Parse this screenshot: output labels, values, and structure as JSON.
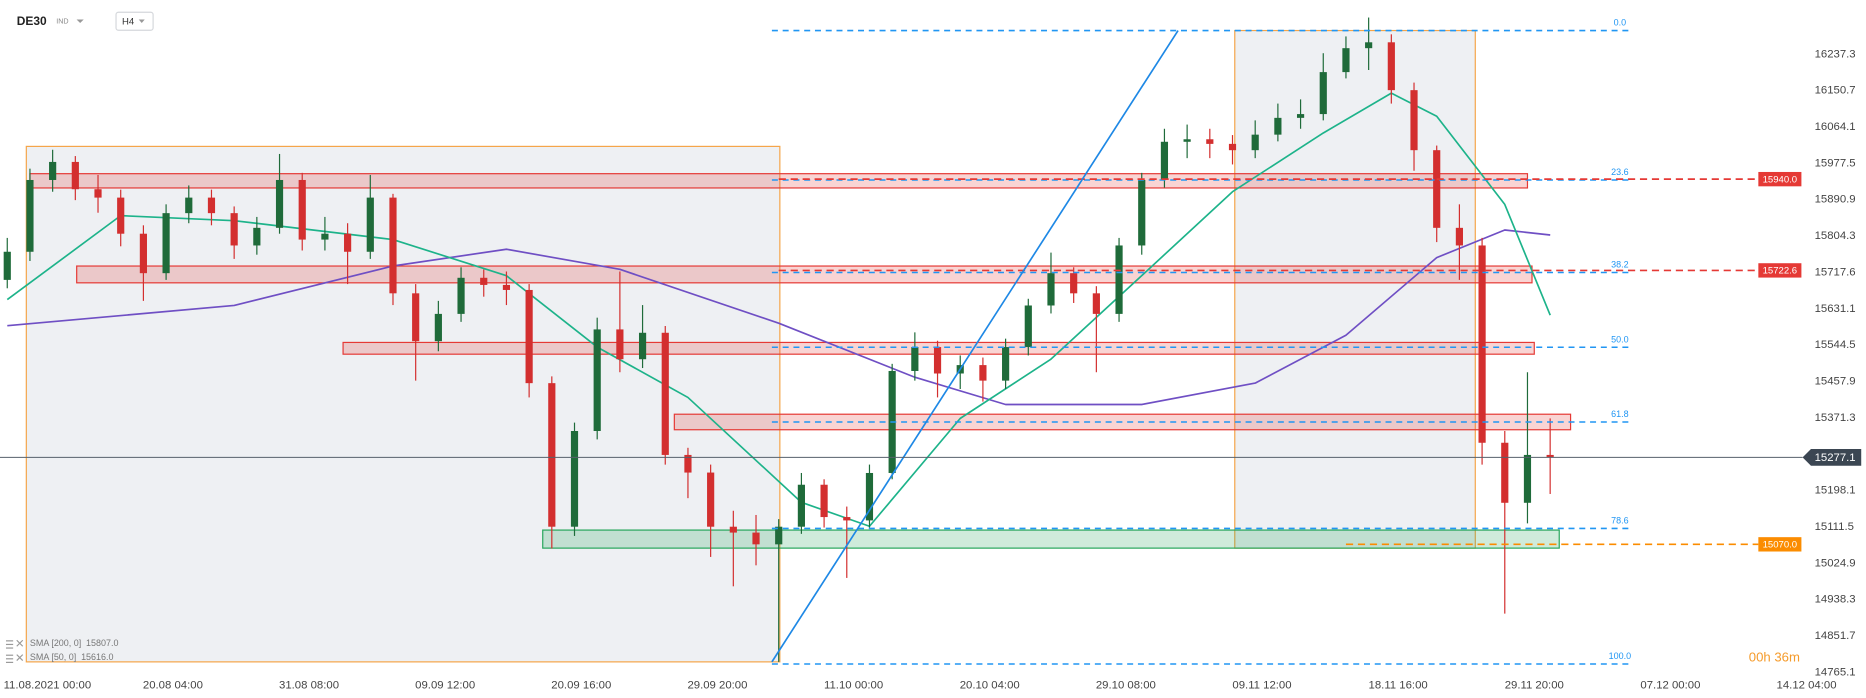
{
  "header": {
    "symbol": "DE30",
    "market": "IND",
    "timeframe": "H4"
  },
  "chart_data": {
    "type": "candlestick",
    "up_color": "#1f6b3a",
    "down_color": "#d32f2f",
    "xlim": [
      -0.32,
      81.92
    ],
    "ylim": [
      14756,
      16366
    ],
    "xticks": [
      {
        "value": 1.3,
        "label": "11.08.2021  00:00"
      },
      {
        "value": 7.3,
        "label": "20.08  04:00"
      },
      {
        "value": 13.3,
        "label": "31.08  08:00"
      },
      {
        "value": 19.3,
        "label": "09.09  12:00"
      },
      {
        "value": 25.3,
        "label": "20.09  16:00"
      },
      {
        "value": 31.3,
        "label": "29.09  20:00"
      },
      {
        "value": 37.3,
        "label": "11.10  00:00"
      },
      {
        "value": 43.3,
        "label": "20.10  04:00"
      },
      {
        "value": 49.3,
        "label": "29.10  08:00"
      },
      {
        "value": 55.3,
        "label": "09.11  12:00"
      },
      {
        "value": 61.3,
        "label": "18.11  16:00"
      },
      {
        "value": 67.3,
        "label": "29.11  20:00"
      },
      {
        "value": 73.3,
        "label": "07.12  00:00"
      },
      {
        "value": 79.3,
        "label": "14.12  04:00"
      }
    ],
    "yticks": [
      16237.3,
      16150.7,
      16064.1,
      15977.5,
      15890.9,
      15804.3,
      15717.6,
      15631.1,
      15544.5,
      15457.9,
      15371.3,
      15198.1,
      15111.5,
      15024.9,
      14938.3,
      14851.7,
      14765.1
    ],
    "ohlc": [
      [
        15700,
        15800,
        15680,
        15767
      ],
      [
        15767,
        15965,
        15745,
        15938
      ],
      [
        15938,
        16010,
        15910,
        15981
      ],
      [
        15981,
        15995,
        15890,
        15916
      ],
      [
        15916,
        15950,
        15860,
        15896
      ],
      [
        15896,
        15915,
        15780,
        15810
      ],
      [
        15810,
        15830,
        15650,
        15716
      ],
      [
        15716,
        15880,
        15700,
        15859
      ],
      [
        15859,
        15925,
        15835,
        15896
      ],
      [
        15896,
        15915,
        15830,
        15859
      ],
      [
        15859,
        15875,
        15750,
        15782
      ],
      [
        15782,
        15850,
        15760,
        15824
      ],
      [
        15824,
        16000,
        15810,
        15938
      ],
      [
        15938,
        15955,
        15770,
        15796
      ],
      [
        15796,
        15850,
        15770,
        15810
      ],
      [
        15810,
        15835,
        15690,
        15767
      ],
      [
        15767,
        15950,
        15750,
        15896
      ],
      [
        15896,
        15905,
        15640,
        15668
      ],
      [
        15668,
        15690,
        15460,
        15554
      ],
      [
        15554,
        15650,
        15530,
        15619
      ],
      [
        15619,
        15730,
        15600,
        15705
      ],
      [
        15705,
        15725,
        15660,
        15688
      ],
      [
        15688,
        15720,
        15640,
        15676
      ],
      [
        15676,
        15690,
        15420,
        15454
      ],
      [
        15454,
        15470,
        15060,
        15112
      ],
      [
        15112,
        15360,
        15090,
        15340
      ],
      [
        15340,
        15610,
        15320,
        15582
      ],
      [
        15582,
        15720,
        15480,
        15511
      ],
      [
        15511,
        15640,
        15490,
        15574
      ],
      [
        15574,
        15590,
        15260,
        15283
      ],
      [
        15283,
        15300,
        15180,
        15241
      ],
      [
        15241,
        15260,
        15040,
        15112
      ],
      [
        15112,
        15150,
        14970,
        15098
      ],
      [
        15098,
        15140,
        15020,
        15070
      ],
      [
        15070,
        15130,
        14790,
        15112
      ],
      [
        15112,
        15240,
        15095,
        15212
      ],
      [
        15212,
        15225,
        15110,
        15135
      ],
      [
        15135,
        15160,
        14990,
        15127
      ],
      [
        15127,
        15260,
        15110,
        15240
      ],
      [
        15240,
        15500,
        15225,
        15483
      ],
      [
        15483,
        15575,
        15460,
        15540
      ],
      [
        15540,
        15555,
        15420,
        15477
      ],
      [
        15477,
        15520,
        15440,
        15497
      ],
      [
        15497,
        15515,
        15410,
        15460
      ],
      [
        15460,
        15560,
        15440,
        15540
      ],
      [
        15540,
        15655,
        15520,
        15639
      ],
      [
        15639,
        15765,
        15620,
        15716
      ],
      [
        15716,
        15730,
        15645,
        15668
      ],
      [
        15668,
        15685,
        15480,
        15619
      ],
      [
        15619,
        15800,
        15600,
        15782
      ],
      [
        15782,
        15955,
        15760,
        15938
      ],
      [
        15938,
        16060,
        15920,
        16029
      ],
      [
        16029,
        16070,
        15990,
        16035
      ],
      [
        16035,
        16060,
        15990,
        16024
      ],
      [
        16024,
        16045,
        15975,
        16009
      ],
      [
        16009,
        16080,
        15990,
        16046
      ],
      [
        16046,
        16120,
        16030,
        16086
      ],
      [
        16086,
        16130,
        16060,
        16095
      ],
      [
        16095,
        16240,
        16080,
        16195
      ],
      [
        16195,
        16280,
        16180,
        16252
      ],
      [
        16252,
        16325,
        16200,
        16266
      ],
      [
        16266,
        16285,
        16120,
        16152
      ],
      [
        16152,
        16170,
        15960,
        16009
      ],
      [
        16009,
        16020,
        15790,
        15824
      ],
      [
        15824,
        15880,
        15700,
        15782
      ],
      [
        15782,
        15800,
        15260,
        15312
      ],
      [
        15312,
        15340,
        14905,
        15169
      ],
      [
        15169,
        15480,
        15120,
        15283
      ],
      [
        15283,
        15370,
        15190,
        15277
      ]
    ],
    "series": [
      {
        "name": "SMA [200, 0]",
        "last_label": "15807.0",
        "color": "#6f4fc4",
        "x": [
          0,
          10,
          17,
          22,
          27,
          34,
          40,
          44,
          50,
          55,
          59,
          63,
          66,
          68
        ],
        "values": [
          15591,
          15639,
          15733,
          15773,
          15725,
          15597,
          15468,
          15403,
          15403,
          15454,
          15568,
          15753,
          15819,
          15807
        ]
      },
      {
        "name": "SMA [50, 0]",
        "last_label": "15616.0",
        "color": "#1db38a",
        "x": [
          0,
          5,
          10,
          17,
          22,
          26,
          30,
          35,
          38,
          42,
          46,
          50,
          54,
          58,
          61,
          63,
          66,
          68
        ],
        "values": [
          15653,
          15853,
          15841,
          15796,
          15710,
          15540,
          15420,
          15170,
          15113,
          15370,
          15511,
          15710,
          15910,
          16050,
          16145,
          16090,
          15880,
          15616
        ]
      }
    ],
    "zones": [
      {
        "top": 15953,
        "bottom": 15919,
        "x0": 1.0,
        "x1": 67.0,
        "color": "#e53935"
      },
      {
        "top": 15733,
        "bottom": 15693,
        "x0": 3.06,
        "x1": 67.2,
        "color": "#e53935"
      },
      {
        "top": 15551,
        "bottom": 15523,
        "x0": 14.8,
        "x1": 67.3,
        "color": "#e53935"
      },
      {
        "top": 15380,
        "bottom": 15343,
        "x0": 29.4,
        "x1": 68.9,
        "color": "#e53935"
      },
      {
        "top": 15104,
        "bottom": 15061,
        "x0": 23.6,
        "x1": 68.4,
        "color": "#26a65b"
      }
    ],
    "time_boxes": [
      {
        "top": 16018,
        "bottom": 14790,
        "x0": 0.84,
        "x1": 34.05
      },
      {
        "top": 16294,
        "bottom": 15061,
        "x0": 54.1,
        "x1": 64.7
      }
    ],
    "trendline": {
      "x": [
        33.7,
        51.6
      ],
      "values": [
        14790,
        16294
      ],
      "color": "#1e88e5"
    },
    "fib": {
      "x0": 33.7,
      "x1": 71.6,
      "high": 16294,
      "low": 14785,
      "color": "#2196f3",
      "levels": [
        {
          "value": 0,
          "label": "0.0"
        },
        23.6,
        38.2,
        {
          "value": 50,
          "label": "50.0"
        },
        61.8,
        78.6,
        {
          "value": 100,
          "label": "100.0"
        }
      ]
    },
    "price_lines": [
      {
        "value": 15940,
        "label": "15940.0",
        "color": "#e53935",
        "x0": 34
      },
      {
        "value": 15722.6,
        "label": "15722.6",
        "color": "#e53935",
        "x0": 34
      },
      {
        "value": 15070,
        "label": "15070.0",
        "color": "#fb8c00",
        "x0": 59
      }
    ],
    "current_price": 15277.1,
    "timer": "00h 36m"
  }
}
